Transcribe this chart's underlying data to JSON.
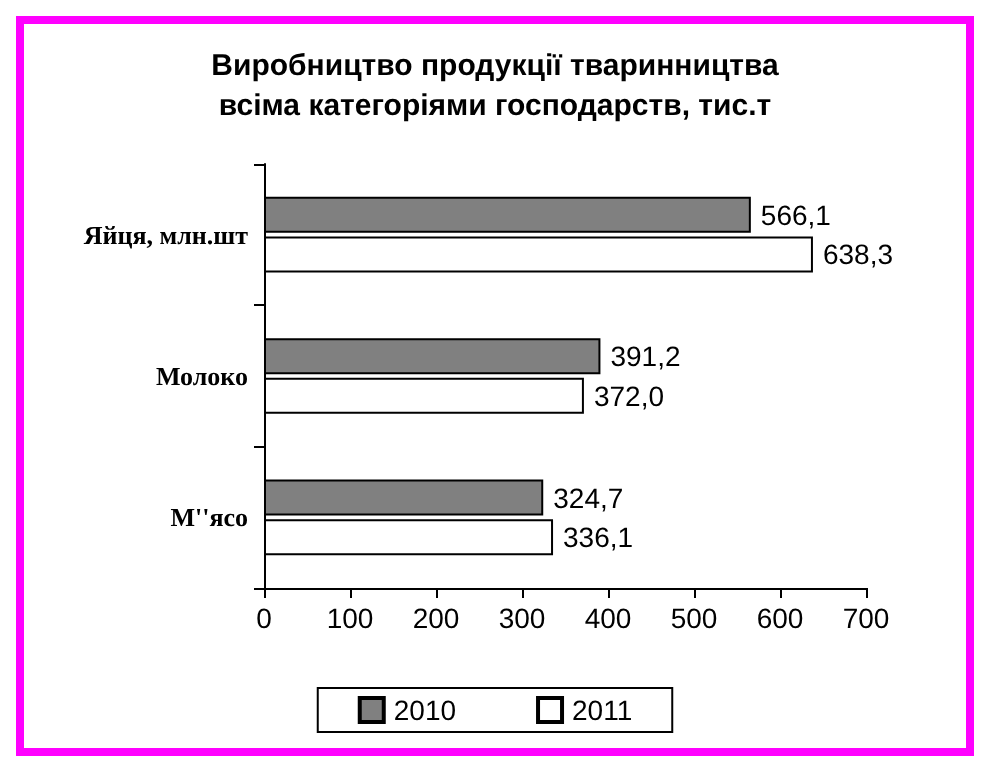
{
  "chart_data": {
    "type": "bar",
    "orientation": "horizontal",
    "title": "Виробництво продукції тваринництва\nвсіма категоріями господарств, тис.т",
    "categories": [
      "Яйця, млн.шт",
      "Молоко",
      "М''ясо"
    ],
    "series": [
      {
        "name": "2010",
        "color": "#808080",
        "values": [
          566.1,
          391.2,
          324.7
        ],
        "value_labels": [
          "566,1",
          "391,2",
          "324,7"
        ]
      },
      {
        "name": "2011",
        "color": "#ffffff",
        "values": [
          638.3,
          372.0,
          336.1
        ],
        "value_labels": [
          "638,3",
          "372,0",
          "336,1"
        ]
      }
    ],
    "xlim": [
      0,
      700
    ],
    "xticks": [
      0,
      100,
      200,
      300,
      400,
      500,
      600,
      700
    ],
    "grid": false,
    "legend": "bottom"
  }
}
